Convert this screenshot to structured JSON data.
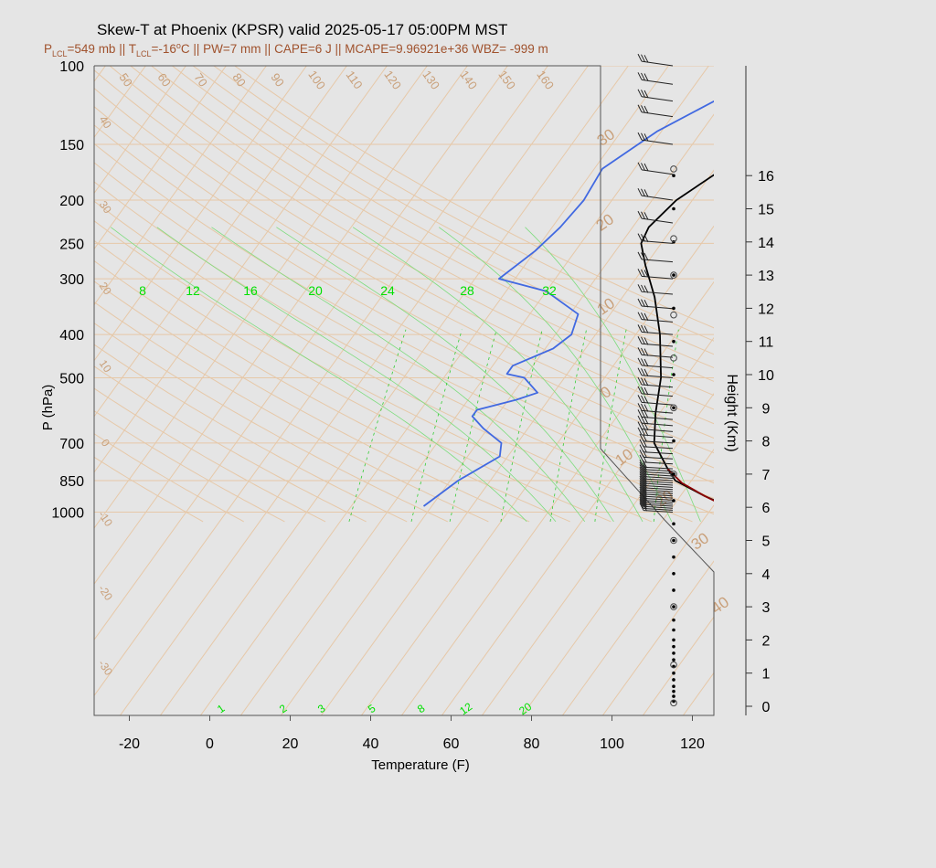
{
  "chart_data": {
    "type": "line",
    "title": "Skew-T at Phoenix (KPSR) valid 2025-05-17 05:00PM MST",
    "subtitle_parts": [
      "P",
      "LCL",
      "=549 mb || T",
      "LCL",
      "=-16",
      "o",
      "C || PW=7 mm || CAPE=6 J || MCAPE=9.96921e+36 WBZ= -999 m"
    ],
    "xlabel": "Temperature (F)",
    "ylabel": "P (hPa)",
    "y2label": "Height (Km)",
    "xlim": [
      -28,
      125
    ],
    "ylim": [
      1050,
      100
    ],
    "x_ticks": [
      -20,
      0,
      20,
      40,
      60,
      80,
      100,
      120
    ],
    "p_ticks": [
      100,
      150,
      200,
      250,
      300,
      400,
      500,
      700,
      850,
      1000
    ],
    "height_ticks": [
      0,
      1,
      2,
      3,
      4,
      5,
      6,
      7,
      8,
      9,
      10,
      11,
      12,
      13,
      14,
      15,
      16
    ],
    "dry_adiabat_labels": [
      "50",
      "60",
      "70",
      "80",
      "90",
      "100",
      "110",
      "120",
      "130",
      "140",
      "150",
      "160"
    ],
    "isotherm_labels_left": [
      "40",
      "30",
      "20",
      "10",
      "0",
      "-10",
      "-20",
      "-30"
    ],
    "isotherm_labels_right": [
      "30",
      "20",
      "10",
      "0",
      "10",
      "20",
      "30",
      "40"
    ],
    "moist_labels": [
      "8",
      "12",
      "16",
      "20",
      "24",
      "28",
      "32"
    ],
    "mixing_labels": [
      "1",
      "2",
      "3",
      "5",
      "8",
      "12",
      "20"
    ],
    "series": [
      {
        "role": "temperature",
        "color": "#000000",
        "points": [
          [
            93.5,
            970
          ],
          [
            86,
            920
          ],
          [
            76,
            850
          ],
          [
            72,
            800
          ],
          [
            64,
            700
          ],
          [
            59,
            600
          ],
          [
            54,
            500
          ],
          [
            46,
            400
          ],
          [
            38,
            330
          ],
          [
            30,
            280
          ],
          [
            25,
            250
          ],
          [
            24,
            230
          ],
          [
            26,
            200
          ],
          [
            32,
            170
          ],
          [
            40,
            140
          ],
          [
            55,
            115
          ],
          [
            68,
            100
          ]
        ]
      },
      {
        "role": "parcel",
        "color": "#8b0000",
        "points": [
          [
            93,
            970
          ],
          [
            86,
            920
          ],
          [
            78,
            860
          ],
          [
            72,
            800
          ]
        ]
      },
      {
        "role": "dewpoint",
        "color": "#4169e1",
        "points": [
          [
            18,
            970
          ],
          [
            22,
            850
          ],
          [
            28,
            750
          ],
          [
            26,
            700
          ],
          [
            19,
            650
          ],
          [
            14,
            610
          ],
          [
            14,
            590
          ],
          [
            22,
            560
          ],
          [
            26,
            540
          ],
          [
            20,
            500
          ],
          [
            15,
            490
          ],
          [
            15,
            470
          ],
          [
            22,
            430
          ],
          [
            24,
            400
          ],
          [
            22,
            360
          ],
          [
            10,
            320
          ],
          [
            -4,
            300
          ],
          [
            0,
            260
          ],
          [
            2,
            230
          ],
          [
            3,
            200
          ],
          [
            2,
            170
          ],
          [
            9,
            140
          ],
          [
            28,
            100
          ]
        ]
      }
    ],
    "wind_barb_pressures": [
      1000,
      990,
      980,
      970,
      960,
      950,
      940,
      930,
      920,
      910,
      900,
      890,
      880,
      870,
      860,
      850,
      840,
      830,
      820,
      810,
      800,
      780,
      760,
      740,
      720,
      700,
      680,
      660,
      640,
      620,
      600,
      575,
      550,
      525,
      500,
      475,
      450,
      425,
      400,
      375,
      350,
      325,
      300,
      275,
      250,
      225,
      200,
      175,
      150,
      130,
      120,
      110,
      100
    ],
    "wind_dot_heights_km": [
      0.15,
      0.3,
      0.45,
      0.6,
      0.8,
      1.0,
      1.2,
      1.4,
      1.6,
      1.8,
      2.0,
      2.3,
      2.6,
      3.0,
      3.5,
      4.0,
      4.5,
      5.0,
      5.5,
      6.2,
      7.0,
      8.0,
      9.0,
      10.0,
      11.0,
      12.0,
      13.0,
      14.0,
      15.0,
      16.0
    ],
    "wind_circle_heights_km": [
      0.1,
      1.25,
      3.0,
      5.0,
      7.0,
      9.0,
      10.5,
      11.8,
      13.0,
      14.1,
      16.2
    ],
    "grid": true
  },
  "colors": {
    "background": "#e5e5e5",
    "grid": "#e6c8a8",
    "label": "#c9a07a",
    "moist": "#7ddc7d",
    "mixing": "#33cc33",
    "title": "#000000",
    "subtitle": "#a0522d",
    "label_green": "#00e000"
  }
}
